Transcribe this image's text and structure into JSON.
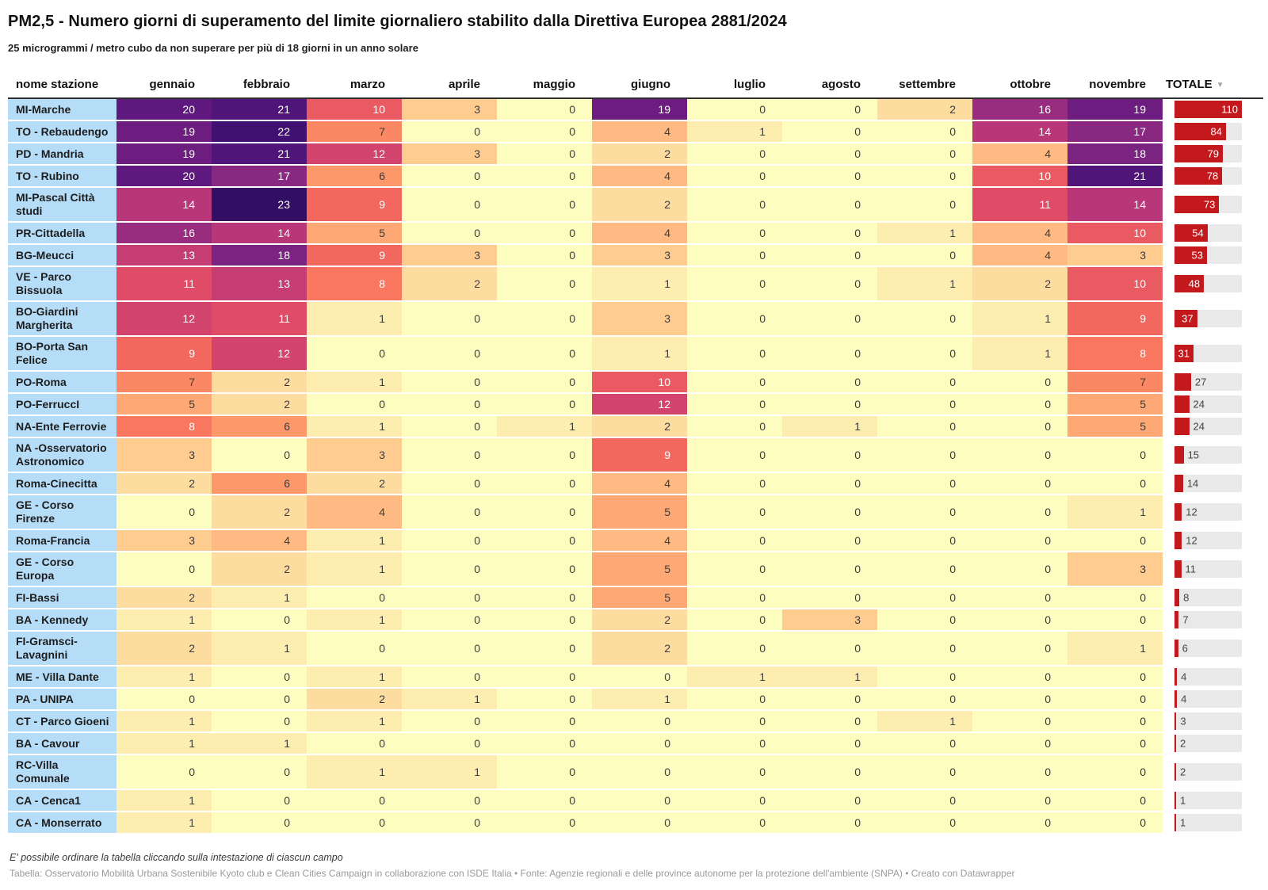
{
  "header": {
    "title": "PM2,5 - Numero giorni di superamento del limite giornaliero stabilito dalla Direttiva Europea 2881/2024",
    "subtitle": "25 microgrammi / metro cubo da non superare per più di 18 giorni in un anno solare"
  },
  "table": {
    "station_header": "nome stazione",
    "total_header": "TOTALE",
    "sort_icon": "▼"
  },
  "chart_data": {
    "type": "heatmap",
    "title": "PM2,5 - Numero giorni di superamento del limite giornaliero stabilito dalla Direttiva Europea 2881/2024",
    "subtitle": "25 microgrammi / metro cubo da non superare per più di 18 giorni in un anno solare",
    "categories": [
      "gennaio",
      "febbraio",
      "marzo",
      "aprile",
      "maggio",
      "giugno",
      "luglio",
      "agosto",
      "settembre",
      "ottobre",
      "novembre"
    ],
    "series": [
      {
        "name": "MI-Marche",
        "values": [
          20,
          21,
          10,
          3,
          0,
          19,
          0,
          0,
          2,
          16,
          19
        ],
        "total": 110
      },
      {
        "name": "TO - Rebaudengo",
        "values": [
          19,
          22,
          7,
          0,
          0,
          4,
          1,
          0,
          0,
          14,
          17
        ],
        "total": 84
      },
      {
        "name": "PD - Mandria",
        "values": [
          19,
          21,
          12,
          3,
          0,
          2,
          0,
          0,
          0,
          4,
          18
        ],
        "total": 79
      },
      {
        "name": "TO - Rubino",
        "values": [
          20,
          17,
          6,
          0,
          0,
          4,
          0,
          0,
          0,
          10,
          21
        ],
        "total": 78
      },
      {
        "name": "MI-Pascal Città studi",
        "values": [
          14,
          23,
          9,
          0,
          0,
          2,
          0,
          0,
          0,
          11,
          14
        ],
        "total": 73
      },
      {
        "name": "PR-Cittadella",
        "values": [
          16,
          14,
          5,
          0,
          0,
          4,
          0,
          0,
          1,
          4,
          10
        ],
        "total": 54
      },
      {
        "name": "BG-Meucci",
        "values": [
          13,
          18,
          9,
          3,
          0,
          3,
          0,
          0,
          0,
          4,
          3
        ],
        "total": 53
      },
      {
        "name": "VE - Parco Bissuola",
        "values": [
          11,
          13,
          8,
          2,
          0,
          1,
          0,
          0,
          1,
          2,
          10
        ],
        "total": 48
      },
      {
        "name": "BO-Giardini Margherita",
        "values": [
          12,
          11,
          1,
          0,
          0,
          3,
          0,
          0,
          0,
          1,
          9
        ],
        "total": 37
      },
      {
        "name": "BO-Porta San Felice",
        "values": [
          9,
          12,
          0,
          0,
          0,
          1,
          0,
          0,
          0,
          1,
          8
        ],
        "total": 31
      },
      {
        "name": "PO-Roma",
        "values": [
          7,
          2,
          1,
          0,
          0,
          10,
          0,
          0,
          0,
          0,
          7
        ],
        "total": 27
      },
      {
        "name": "PO-FerruccI",
        "values": [
          5,
          2,
          0,
          0,
          0,
          12,
          0,
          0,
          0,
          0,
          5
        ],
        "total": 24
      },
      {
        "name": "NA-Ente Ferrovie",
        "values": [
          8,
          6,
          1,
          0,
          1,
          2,
          0,
          1,
          0,
          0,
          5
        ],
        "total": 24
      },
      {
        "name": "NA -Osservatorio Astronomico",
        "values": [
          3,
          0,
          3,
          0,
          0,
          9,
          0,
          0,
          0,
          0,
          0
        ],
        "total": 15
      },
      {
        "name": "Roma-Cinecitta",
        "values": [
          2,
          6,
          2,
          0,
          0,
          4,
          0,
          0,
          0,
          0,
          0
        ],
        "total": 14
      },
      {
        "name": "GE - Corso Firenze",
        "values": [
          0,
          2,
          4,
          0,
          0,
          5,
          0,
          0,
          0,
          0,
          1
        ],
        "total": 12
      },
      {
        "name": "Roma-Francia",
        "values": [
          3,
          4,
          1,
          0,
          0,
          4,
          0,
          0,
          0,
          0,
          0
        ],
        "total": 12
      },
      {
        "name": "GE - Corso Europa",
        "values": [
          0,
          2,
          1,
          0,
          0,
          5,
          0,
          0,
          0,
          0,
          3
        ],
        "total": 11
      },
      {
        "name": "FI-Bassi",
        "values": [
          2,
          1,
          0,
          0,
          0,
          5,
          0,
          0,
          0,
          0,
          0
        ],
        "total": 8
      },
      {
        "name": "BA - Kennedy",
        "values": [
          1,
          0,
          1,
          0,
          0,
          2,
          0,
          3,
          0,
          0,
          0
        ],
        "total": 7
      },
      {
        "name": "FI-Gramsci-Lavagnini",
        "values": [
          2,
          1,
          0,
          0,
          0,
          2,
          0,
          0,
          0,
          0,
          1
        ],
        "total": 6
      },
      {
        "name": "ME - Villa Dante",
        "values": [
          1,
          0,
          1,
          0,
          0,
          0,
          1,
          1,
          0,
          0,
          0
        ],
        "total": 4
      },
      {
        "name": "PA - UNIPA",
        "values": [
          0,
          0,
          2,
          1,
          0,
          1,
          0,
          0,
          0,
          0,
          0
        ],
        "total": 4
      },
      {
        "name": "CT - Parco Gioeni",
        "values": [
          1,
          0,
          1,
          0,
          0,
          0,
          0,
          0,
          1,
          0,
          0
        ],
        "total": 3
      },
      {
        "name": "BA - Cavour",
        "values": [
          1,
          1,
          0,
          0,
          0,
          0,
          0,
          0,
          0,
          0,
          0
        ],
        "total": 2
      },
      {
        "name": "RC-Villa Comunale",
        "values": [
          0,
          0,
          1,
          1,
          0,
          0,
          0,
          0,
          0,
          0,
          0
        ],
        "total": 2
      },
      {
        "name": "CA - Cenca1",
        "values": [
          1,
          0,
          0,
          0,
          0,
          0,
          0,
          0,
          0,
          0,
          0
        ],
        "total": 1
      },
      {
        "name": "CA - Monserrato",
        "values": [
          1,
          0,
          0,
          0,
          0,
          0,
          0,
          0,
          0,
          0,
          0
        ],
        "total": 1
      }
    ],
    "bar_max": 110,
    "color_scale": {
      "type": "magma_reversed",
      "domain": [
        0,
        28
      ],
      "stops": [
        "#fcfdbf",
        "#fecf92",
        "#fe9f6d",
        "#f7705c",
        "#de4968",
        "#b73779",
        "#8c2981",
        "#641a80",
        "#3b0f70",
        "#140e36",
        "#000004"
      ]
    },
    "legend_position": "none",
    "grid": false
  },
  "style": {
    "station_bg": "#b6ddf8",
    "bar_red": "#c4191c",
    "bar_track": "#e9e9e9",
    "header_rule": "#2f2f2f",
    "cell_text_dark": "#3c3c3c",
    "cell_text_light": "#ffffff",
    "white_text_min_value": 8,
    "bar_inside_label_min_value": 30
  },
  "footer": {
    "note": "E' possibile ordinare la tabella cliccando sulla intestazione di ciascun campo",
    "credits": "Tabella: Osservatorio Mobilità Urbana Sostenibile Kyoto club e Clean Cities Campaign in collaborazione con ISDE Italia • Fonte: Agenzie regionali e delle province autonome per la protezione dell'ambiente (SNPA) • Creato con Datawrapper"
  }
}
